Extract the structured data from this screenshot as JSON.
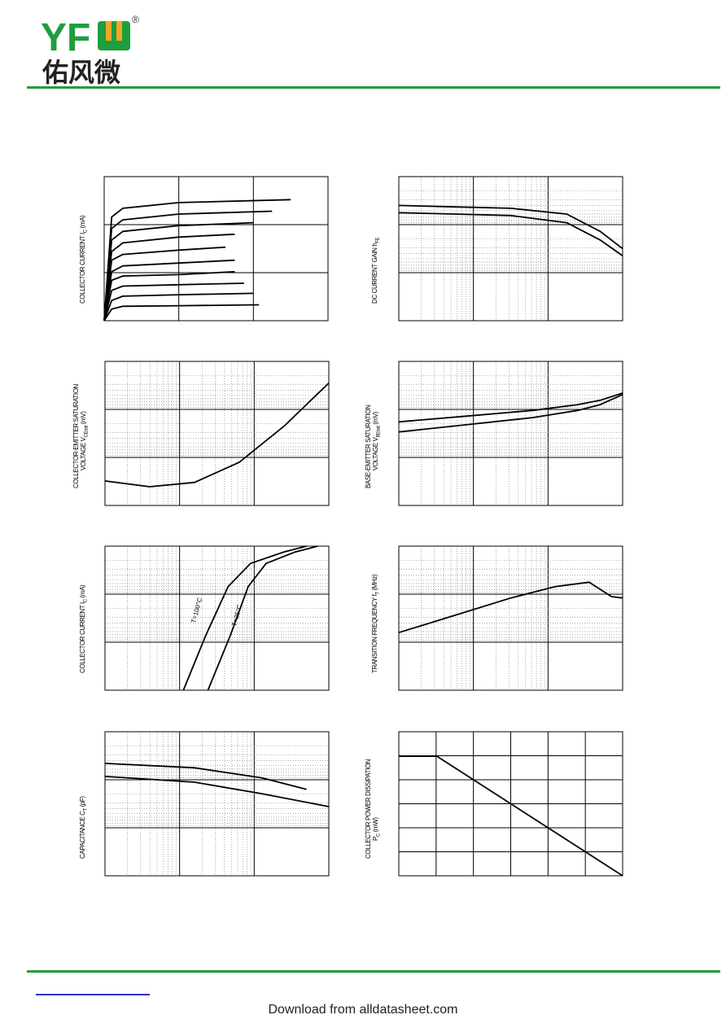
{
  "brand": {
    "name": "YFW",
    "chinese": "佑风微",
    "registered": "®",
    "color": "#1e9e3e",
    "accent": "#f5a623"
  },
  "footer": {
    "text": "Download from alldatasheet.com"
  },
  "charts": [
    {
      "id": "c1",
      "ylabel": "COLLECTOR CURRENT  I",
      "ysub": "C",
      "yunit": "(mA)"
    },
    {
      "id": "c2",
      "ylabel": "DC CURRENT GAIN  h",
      "ysub": "FE",
      "yunit": ""
    },
    {
      "id": "c3",
      "ylabel": "COLLECTOR-EMITTER SATURATION",
      "ylabel2": "VOLTAGE  V",
      "ysub": "CEsat",
      "yunit": "(mV)"
    },
    {
      "id": "c4",
      "ylabel": "BASE-EMITTER SATURATION",
      "ylabel2": "VOLTAGE  V",
      "ysub": "BEsat",
      "yunit": "(mV)"
    },
    {
      "id": "c5",
      "ylabel": "COLLECTOR CURRENT  I",
      "ysub": "C",
      "yunit": "(mA)",
      "annotations": [
        "T=100°C",
        "T=25°C"
      ]
    },
    {
      "id": "c6",
      "ylabel": "TRANSITION FREQUENCY  f",
      "ysub": "T",
      "yunit": "(MHz)"
    },
    {
      "id": "c7",
      "ylabel": "CAPACITANCE  C",
      "ysub": "T",
      "yunit": "(pF)"
    },
    {
      "id": "c8",
      "ylabel": "COLLECTOR POWER DISSIPATION",
      "ylabel2": "P",
      "ysub": "C",
      "yunit": "(mW)"
    }
  ],
  "chart_data": [
    {
      "type": "line",
      "series": [
        {
          "x": [
            0,
            0.4,
            1,
            4,
            10
          ],
          "y": [
            0,
            3.6,
            3.9,
            4.1,
            4.2
          ]
        },
        {
          "x": [
            0,
            0.4,
            1,
            4,
            9
          ],
          "y": [
            0,
            3.2,
            3.5,
            3.7,
            3.8
          ]
        },
        {
          "x": [
            0,
            0.4,
            1,
            4,
            8
          ],
          "y": [
            0,
            2.8,
            3.1,
            3.3,
            3.4
          ]
        },
        {
          "x": [
            0,
            0.4,
            1,
            4,
            7
          ],
          "y": [
            0,
            2.4,
            2.7,
            2.9,
            3.0
          ]
        },
        {
          "x": [
            0,
            0.4,
            1,
            4,
            6.5
          ],
          "y": [
            0,
            2.1,
            2.3,
            2.45,
            2.55
          ]
        },
        {
          "x": [
            0,
            0.4,
            1,
            4,
            7
          ],
          "y": [
            0,
            1.7,
            1.9,
            2.0,
            2.1
          ]
        },
        {
          "x": [
            0,
            0.4,
            1,
            4,
            7
          ],
          "y": [
            0,
            1.4,
            1.55,
            1.6,
            1.7
          ]
        },
        {
          "x": [
            0,
            0.4,
            1,
            4,
            7.5
          ],
          "y": [
            0,
            1.05,
            1.2,
            1.25,
            1.3
          ]
        },
        {
          "x": [
            0,
            0.4,
            1,
            4,
            8
          ],
          "y": [
            0,
            0.7,
            0.85,
            0.9,
            0.95
          ]
        },
        {
          "x": [
            0,
            0.4,
            1,
            4,
            8.3
          ],
          "y": [
            0,
            0.4,
            0.5,
            0.52,
            0.55
          ]
        }
      ]
    },
    {
      "type": "line",
      "series": [
        {
          "x": [
            0,
            0.25,
            0.5,
            0.75,
            0.9,
            1
          ],
          "y": [
            0.8,
            0.79,
            0.78,
            0.74,
            0.62,
            0.5
          ]
        },
        {
          "x": [
            0,
            0.25,
            0.5,
            0.75,
            0.9,
            1
          ],
          "y": [
            0.75,
            0.74,
            0.73,
            0.68,
            0.56,
            0.45
          ]
        }
      ]
    },
    {
      "type": "line",
      "series": [
        {
          "x": [
            0,
            0.2,
            0.4,
            0.6,
            0.8,
            1
          ],
          "y": [
            0.17,
            0.13,
            0.16,
            0.3,
            0.55,
            0.85
          ]
        }
      ]
    },
    {
      "type": "line",
      "series": [
        {
          "x": [
            0,
            0.3,
            0.6,
            0.8,
            0.9,
            1
          ],
          "y": [
            0.58,
            0.62,
            0.66,
            0.7,
            0.73,
            0.78
          ]
        },
        {
          "x": [
            0,
            0.3,
            0.6,
            0.8,
            0.9,
            1
          ],
          "y": [
            0.51,
            0.56,
            0.61,
            0.66,
            0.7,
            0.77
          ]
        }
      ]
    },
    {
      "type": "line",
      "series": [
        {
          "x": [
            0.35,
            0.45,
            0.55,
            0.65,
            0.8,
            0.9
          ],
          "y": [
            0,
            0.38,
            0.72,
            0.88,
            0.96,
            1
          ]
        },
        {
          "x": [
            0.46,
            0.56,
            0.64,
            0.72,
            0.85,
            0.95
          ],
          "y": [
            0,
            0.38,
            0.72,
            0.88,
            0.96,
            1
          ]
        }
      ]
    },
    {
      "type": "line",
      "series": [
        {
          "x": [
            0,
            0.25,
            0.5,
            0.7,
            0.85,
            0.95,
            1
          ],
          "y": [
            0.4,
            0.52,
            0.64,
            0.72,
            0.75,
            0.65,
            0.64
          ]
        }
      ]
    },
    {
      "type": "line",
      "series": [
        {
          "x": [
            0,
            0.4,
            0.7,
            0.9
          ],
          "y": [
            0.78,
            0.75,
            0.68,
            0.6
          ]
        },
        {
          "x": [
            0,
            0.4,
            0.7,
            1
          ],
          "y": [
            0.69,
            0.65,
            0.57,
            0.48
          ]
        }
      ]
    },
    {
      "type": "line",
      "series": [
        {
          "x": [
            0,
            0.17,
            1
          ],
          "y": [
            0.83,
            0.83,
            0
          ]
        }
      ]
    }
  ]
}
